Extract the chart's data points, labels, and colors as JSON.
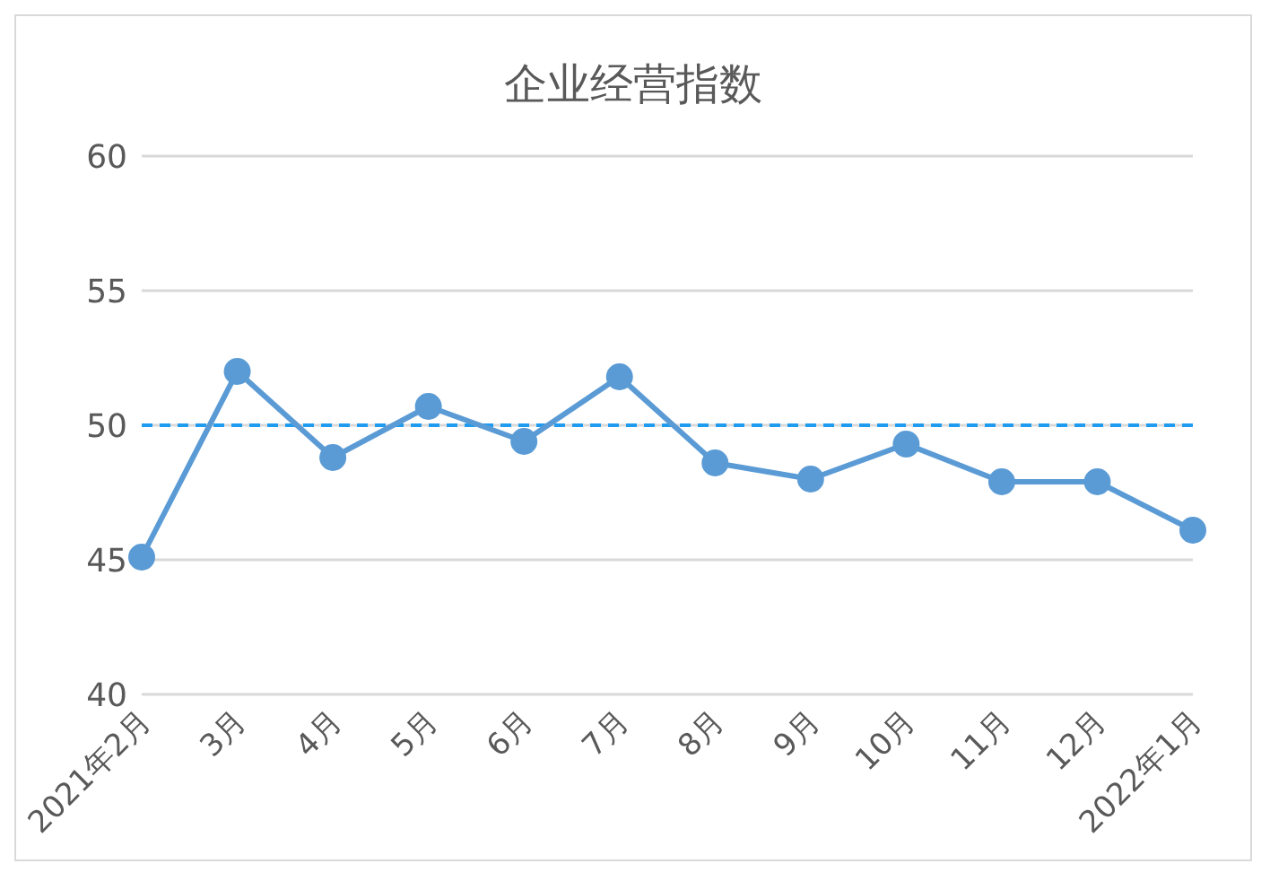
{
  "chart_data": {
    "type": "line",
    "title": "企业经营指数",
    "categories": [
      "2021年2月",
      "3月",
      "4月",
      "5月",
      "6月",
      "7月",
      "8月",
      "9月",
      "10月",
      "11月",
      "12月",
      "2022年1月"
    ],
    "series": [
      {
        "color": "#5b9bd5",
        "values": [
          45.1,
          52.0,
          48.8,
          50.7,
          49.4,
          51.8,
          48.6,
          48.0,
          49.3,
          47.9,
          47.9,
          46.1
        ]
      }
    ],
    "ylim": [
      40,
      60
    ],
    "yticks": [
      40,
      45,
      50,
      55,
      60
    ],
    "grid": "y",
    "marker": "circle",
    "line_style": "solid",
    "ref_lines": [
      {
        "axis": "y",
        "value": 50,
        "color": "#1f9cf0",
        "line_style": "dashed"
      }
    ]
  }
}
